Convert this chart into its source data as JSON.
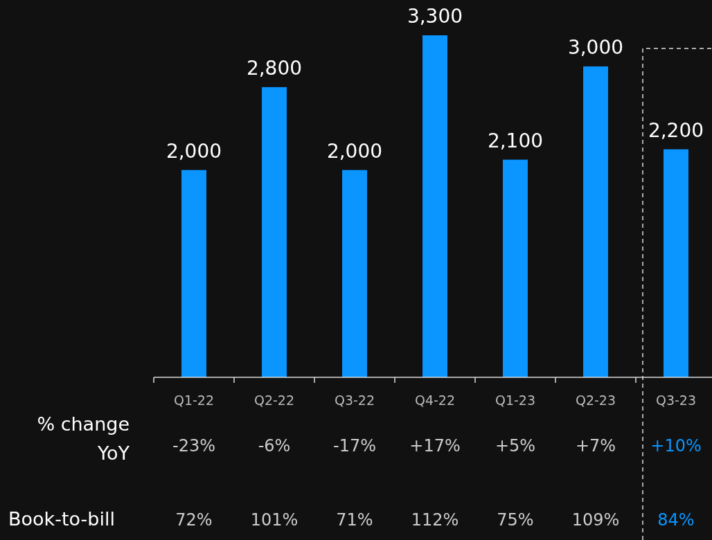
{
  "chart_data": {
    "type": "bar",
    "categories": [
      "Q1-22",
      "Q2-22",
      "Q3-22",
      "Q4-22",
      "Q1-23",
      "Q2-23",
      "Q3-23"
    ],
    "values": [
      2000,
      2800,
      2000,
      3300,
      2100,
      3000,
      2200
    ],
    "value_labels": [
      "2,000",
      "2,800",
      "2,000",
      "3,300",
      "2,100",
      "3,000",
      "2,200"
    ],
    "color": "#0a95ff",
    "annotations": [
      "% change\nYoY",
      "-23%",
      "-6%",
      "-17%",
      "+17%",
      "+5%",
      "+7%",
      "+10%",
      "Book-to-bill",
      "72%",
      "101%",
      "71%",
      "112%",
      "75%",
      "109%",
      "84%"
    ]
  }
}
